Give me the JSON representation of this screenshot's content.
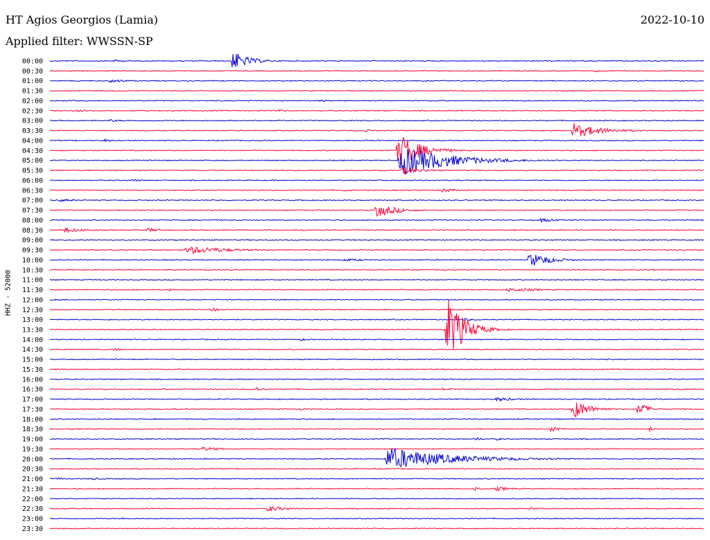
{
  "header": {
    "station": "HT Agios Georgios (Lamia)",
    "date": "2022-10-10",
    "filter": "Applied filter: WWSSN-SP"
  },
  "chart_data": {
    "type": "line",
    "title": "HT Agios Georgios (Lamia)",
    "subtitle": "Applied filter: WWSSN-SP",
    "ylabel": "HHZ - 52000",
    "xlabel": "",
    "colors": {
      "even_row": "#0000cc",
      "odd_row": "#ff0033"
    },
    "row_labels": [
      "00:00",
      "00:30",
      "01:00",
      "01:30",
      "02:00",
      "02:30",
      "03:00",
      "03:30",
      "04:00",
      "04:30",
      "05:00",
      "05:30",
      "06:00",
      "06:30",
      "07:00",
      "07:30",
      "08:00",
      "08:30",
      "09:00",
      "09:30",
      "10:00",
      "10:30",
      "11:00",
      "11:30",
      "12:00",
      "12:30",
      "13:00",
      "13:30",
      "14:00",
      "14:30",
      "15:00",
      "15:30",
      "16:00",
      "16:30",
      "17:00",
      "17:30",
      "18:00",
      "18:30",
      "19:00",
      "19:30",
      "20:00",
      "20:30",
      "21:00",
      "21:30",
      "22:00",
      "22:30",
      "23:00",
      "23:30"
    ],
    "row_minutes": 30,
    "events": [
      {
        "row": 0,
        "minute": 8.4,
        "amplitude": 14,
        "duration": 1.2
      },
      {
        "row": 0,
        "minute": 3.0,
        "amplitude": 2,
        "duration": 0.8
      },
      {
        "row": 1,
        "minute": 25.0,
        "amplitude": 2,
        "duration": 0.6
      },
      {
        "row": 2,
        "minute": 2.8,
        "amplitude": 3,
        "duration": 1.2
      },
      {
        "row": 4,
        "minute": 12.5,
        "amplitude": 2,
        "duration": 0.5
      },
      {
        "row": 5,
        "minute": 1.3,
        "amplitude": 2,
        "duration": 0.8
      },
      {
        "row": 5,
        "minute": 10.5,
        "amplitude": 2,
        "duration": 0.6
      },
      {
        "row": 6,
        "minute": 2.8,
        "amplitude": 2,
        "duration": 0.8
      },
      {
        "row": 7,
        "minute": 14.5,
        "amplitude": 2,
        "duration": 0.8
      },
      {
        "row": 7,
        "minute": 24.0,
        "amplitude": 11,
        "duration": 2.0
      },
      {
        "row": 8,
        "minute": 2.5,
        "amplitude": 2,
        "duration": 0.8
      },
      {
        "row": 9,
        "minute": 16.0,
        "amplitude": 26,
        "duration": 1.5
      },
      {
        "row": 10,
        "minute": 16.1,
        "amplitude": 22,
        "duration": 3.5
      },
      {
        "row": 11,
        "minute": 16.2,
        "amplitude": 6,
        "duration": 1.5
      },
      {
        "row": 12,
        "minute": 3.8,
        "amplitude": 2,
        "duration": 0.8
      },
      {
        "row": 13,
        "minute": 13.5,
        "amplitude": 2,
        "duration": 0.6
      },
      {
        "row": 13,
        "minute": 18.0,
        "amplitude": 3,
        "duration": 1.2
      },
      {
        "row": 14,
        "minute": 0.5,
        "amplitude": 2,
        "duration": 1.5
      },
      {
        "row": 15,
        "minute": 15.0,
        "amplitude": 10,
        "duration": 1.5
      },
      {
        "row": 16,
        "minute": 22.5,
        "amplitude": 3,
        "duration": 1.2
      },
      {
        "row": 17,
        "minute": 0.7,
        "amplitude": 4,
        "duration": 1.5
      },
      {
        "row": 17,
        "minute": 4.5,
        "amplitude": 3,
        "duration": 1.0
      },
      {
        "row": 17,
        "minute": 11.5,
        "amplitude": 2,
        "duration": 0.8
      },
      {
        "row": 19,
        "minute": 6.3,
        "amplitude": 6,
        "duration": 3.0
      },
      {
        "row": 20,
        "minute": 13.5,
        "amplitude": 2,
        "duration": 2.0
      },
      {
        "row": 20,
        "minute": 22.0,
        "amplitude": 11,
        "duration": 1.5
      },
      {
        "row": 21,
        "minute": 27.5,
        "amplitude": 2,
        "duration": 0.6
      },
      {
        "row": 23,
        "minute": 21.0,
        "amplitude": 3,
        "duration": 2.5
      },
      {
        "row": 23,
        "minute": 5.5,
        "amplitude": 2,
        "duration": 0.6
      },
      {
        "row": 24,
        "minute": 0.2,
        "amplitude": 2,
        "duration": 0.8
      },
      {
        "row": 25,
        "minute": 7.3,
        "amplitude": 3,
        "duration": 1.0
      },
      {
        "row": 26,
        "minute": 19.0,
        "amplitude": 2,
        "duration": 1.2
      },
      {
        "row": 27,
        "minute": 18.2,
        "amplitude": 50,
        "duration": 1.2
      },
      {
        "row": 28,
        "minute": 11.5,
        "amplitude": 2,
        "duration": 0.8
      },
      {
        "row": 29,
        "minute": 3.0,
        "amplitude": 2,
        "duration": 0.6
      },
      {
        "row": 33,
        "minute": 9.5,
        "amplitude": 3,
        "duration": 0.6
      },
      {
        "row": 33,
        "minute": 18.0,
        "amplitude": 2,
        "duration": 1.0
      },
      {
        "row": 34,
        "minute": 20.5,
        "amplitude": 3,
        "duration": 1.5
      },
      {
        "row": 35,
        "minute": 24.0,
        "amplitude": 14,
        "duration": 1.2
      },
      {
        "row": 35,
        "minute": 27.0,
        "amplitude": 12,
        "duration": 0.6
      },
      {
        "row": 35,
        "minute": 11.5,
        "amplitude": 2,
        "duration": 0.6
      },
      {
        "row": 37,
        "minute": 23.0,
        "amplitude": 5,
        "duration": 0.6
      },
      {
        "row": 37,
        "minute": 27.5,
        "amplitude": 3,
        "duration": 0.6
      },
      {
        "row": 38,
        "minute": 19.5,
        "amplitude": 3,
        "duration": 0.5
      },
      {
        "row": 38,
        "minute": 20.5,
        "amplitude": 2,
        "duration": 0.5
      },
      {
        "row": 39,
        "minute": 7.0,
        "amplitude": 3,
        "duration": 1.5
      },
      {
        "row": 40,
        "minute": 15.5,
        "amplitude": 17,
        "duration": 4.5
      },
      {
        "row": 42,
        "minute": 0.4,
        "amplitude": 2,
        "duration": 0.5
      },
      {
        "row": 42,
        "minute": 2.0,
        "amplitude": 2,
        "duration": 0.6
      },
      {
        "row": 43,
        "minute": 19.5,
        "amplitude": 3,
        "duration": 0.6
      },
      {
        "row": 43,
        "minute": 20.5,
        "amplitude": 3,
        "duration": 1.2
      },
      {
        "row": 45,
        "minute": 10.0,
        "amplitude": 4,
        "duration": 1.5
      },
      {
        "row": 45,
        "minute": 22.0,
        "amplitude": 2,
        "duration": 0.8
      },
      {
        "row": 46,
        "minute": 3.2,
        "amplitude": 2,
        "duration": 0.5
      }
    ]
  }
}
